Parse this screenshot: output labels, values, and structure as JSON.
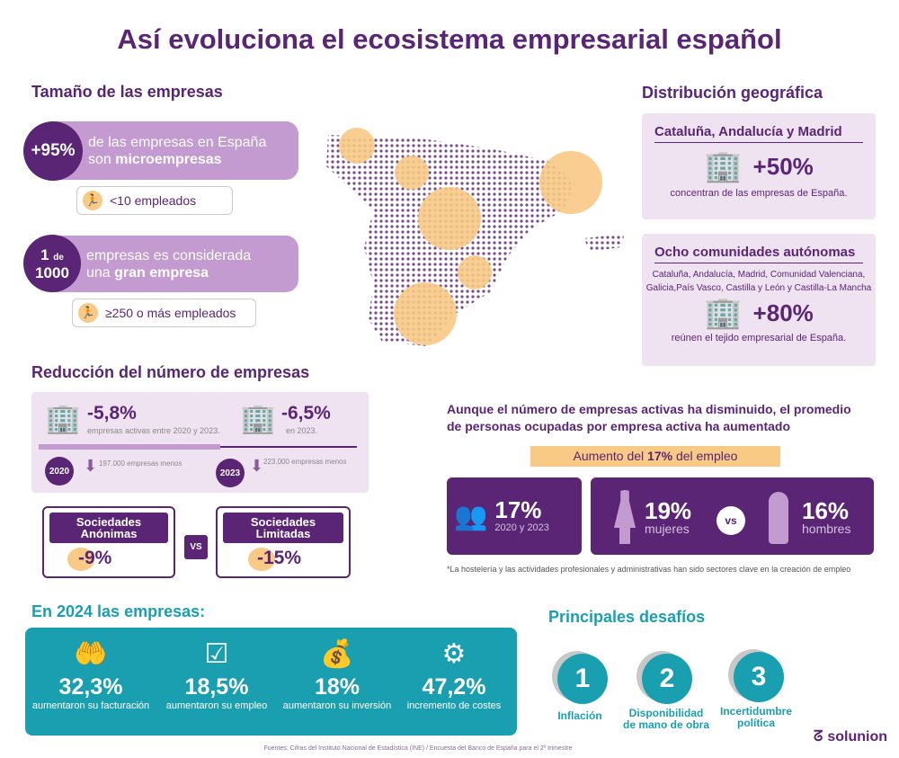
{
  "title": "Así evoluciona el ecosistema empresarial español",
  "size": {
    "heading": "Tamaño de las empresas",
    "micro": {
      "badge": "+95%",
      "text1": "de las empresas en España",
      "text2": "son ",
      "text2b": "microempresas",
      "sub": "<10 empleados"
    },
    "large": {
      "badge1": "1",
      "badge_de": "de",
      "badge2": "1000",
      "text1": "empresas es considerada",
      "text2": "una ",
      "text2b": "gran empresa",
      "sub": "≥250 o más empleados"
    }
  },
  "geo": {
    "heading": "Distribución geográfica",
    "box1": {
      "title": "Cataluña, Andalucía y Madrid",
      "value": "+50%",
      "caption": "concentran de las empresas de España."
    },
    "box2": {
      "title": "Ocho comunidades autónomas",
      "list1": "Cataluña, Andalucía, Madrid, Comunidad Valenciana,",
      "list2": "Galicia,País Vasco, Castilla y León y Castilla-La Mancha",
      "value": "+80%",
      "caption": "reúnen el tejido empresarial de España."
    }
  },
  "reduction": {
    "heading": "Reducción del número de empresas",
    "left": {
      "value": "-5,8%",
      "caption": "empresas activas entre 2020 y 2023.",
      "year": "2020",
      "delta": "197.000 empresas menos"
    },
    "right": {
      "value": "-6,5%",
      "caption": "en 2023.",
      "year": "2023",
      "delta": "223.000 empresas menos"
    },
    "sa": {
      "label": "Sociedades Anónimas",
      "value": "-9%"
    },
    "sl": {
      "label": "Sociedades Limitadas",
      "value": "-15%"
    },
    "vs": "VS"
  },
  "employment": {
    "headline1": "Aunque el número de empresas activas ha disminuido, el promedio",
    "headline2": "de personas ocupadas por empresa activa ha aumentado",
    "banner_a": "Aumento del ",
    "banner_b": "17%",
    "banner_c": " del empleo",
    "total": {
      "value": "17%",
      "label": "2020 y 2023"
    },
    "women": {
      "value": "19%",
      "label": "mujeres"
    },
    "vs": "vs",
    "men": {
      "value": "16%",
      "label": "hombres"
    },
    "note": "*La hostelería y las actividades profesionales y administrativas han sido sectores clave en la creación de empleo"
  },
  "y2024": {
    "heading": "En 2024 las empresas:",
    "stats": [
      {
        "value": "32,3%",
        "label": "aumentaron su facturación",
        "icon": "hand-money-icon"
      },
      {
        "value": "18,5%",
        "label": "aumentaron su empleo",
        "icon": "person-checklist-icon"
      },
      {
        "value": "18%",
        "label": "aumentaron su inversión",
        "icon": "money-bag-icon"
      },
      {
        "value": "47,2%",
        "label": "incremento de costes",
        "icon": "gear-coin-icon"
      }
    ]
  },
  "challenges": {
    "heading": "Principales desafíos",
    "items": [
      {
        "n": "1",
        "l1": "Inflación",
        "l2": ""
      },
      {
        "n": "2",
        "l1": "Disponibilidad",
        "l2": "de mano de obra"
      },
      {
        "n": "3",
        "l1": "Incertidumbre",
        "l2": "política"
      }
    ]
  },
  "sources": "Fuentes: Cifras del Instituto Nacional de Estadística (INE) / Encuesta del Banco de España para el 2º trimestre",
  "logo": "solunion",
  "colors": {
    "purple": "#5a2574",
    "lilac": "#c49bd0",
    "lavender": "#efe3f1",
    "teal": "#1a9fb0",
    "orange": "#f9c986"
  }
}
